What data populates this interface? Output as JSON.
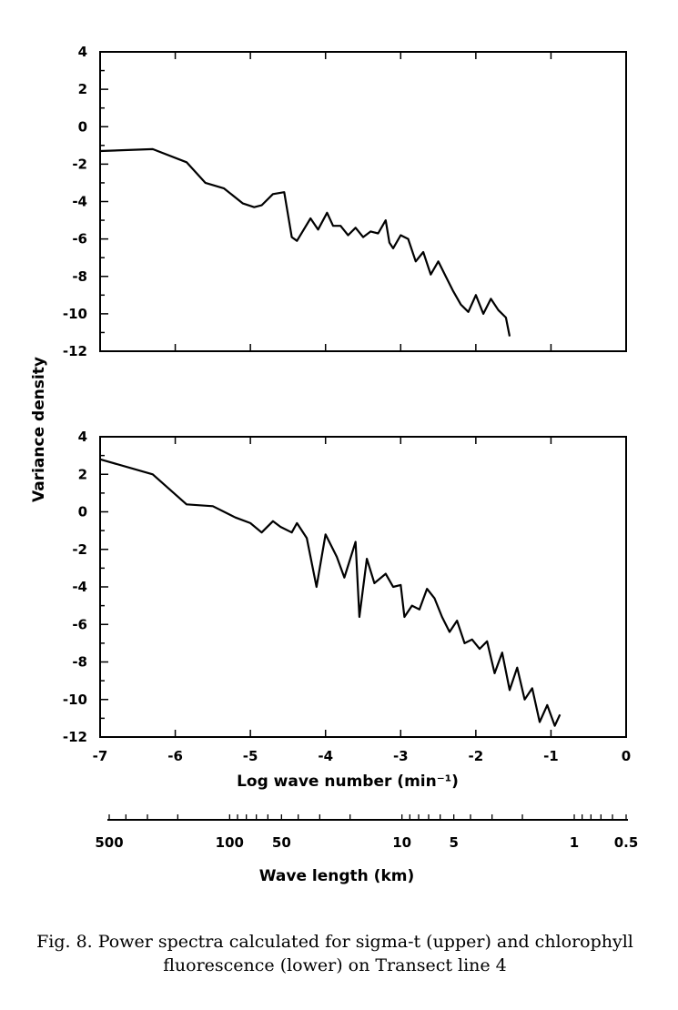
{
  "chart_data": [
    {
      "type": "line",
      "name": "sigma-t (upper)",
      "ylim": [
        -12,
        4
      ],
      "xlim": [
        -7,
        0
      ],
      "yticks": [
        4,
        2,
        0,
        -2,
        -4,
        -6,
        -8,
        -10,
        -12
      ],
      "x": [
        -7.0,
        -6.3,
        -5.85,
        -5.6,
        -5.35,
        -5.1,
        -4.95,
        -4.85,
        -4.7,
        -4.55,
        -4.45,
        -4.38,
        -4.2,
        -4.1,
        -3.98,
        -3.9,
        -3.8,
        -3.7,
        -3.6,
        -3.5,
        -3.4,
        -3.3,
        -3.2,
        -3.15,
        -3.1,
        -3.0,
        -2.9,
        -2.8,
        -2.7,
        -2.6,
        -2.5,
        -2.4,
        -2.3,
        -2.2,
        -2.1,
        -2.0,
        -1.9,
        -1.8,
        -1.7,
        -1.6,
        -1.55
      ],
      "y": [
        -1.3,
        -1.2,
        -1.9,
        -3.0,
        -3.3,
        -4.1,
        -4.3,
        -4.2,
        -3.6,
        -3.5,
        -5.9,
        -6.1,
        -4.9,
        -5.5,
        -4.6,
        -5.3,
        -5.3,
        -5.8,
        -5.4,
        -5.9,
        -5.6,
        -5.7,
        -5.0,
        -6.2,
        -6.5,
        -5.8,
        -6.0,
        -7.2,
        -6.7,
        -7.9,
        -7.2,
        -8.0,
        -8.8,
        -9.5,
        -9.9,
        -9.0,
        -10.0,
        -9.2,
        -9.8,
        -10.2,
        -11.2
      ]
    },
    {
      "type": "line",
      "name": "chlorophyll fluorescence (lower)",
      "ylim": [
        -12,
        4
      ],
      "xlim": [
        -7,
        0
      ],
      "yticks": [
        4,
        2,
        0,
        -2,
        -4,
        -6,
        -8,
        -10,
        -12
      ],
      "xticks": [
        -7,
        -6,
        -5,
        -4,
        -3,
        -2,
        -1,
        0
      ],
      "xlabel": "Log wave number  (min⁻¹)",
      "x": [
        -7.0,
        -6.3,
        -5.85,
        -5.5,
        -5.2,
        -5.0,
        -4.85,
        -4.7,
        -4.6,
        -4.45,
        -4.38,
        -4.25,
        -4.12,
        -4.0,
        -3.85,
        -3.75,
        -3.6,
        -3.55,
        -3.45,
        -3.35,
        -3.2,
        -3.1,
        -3.0,
        -2.95,
        -2.85,
        -2.75,
        -2.65,
        -2.55,
        -2.45,
        -2.35,
        -2.25,
        -2.15,
        -2.05,
        -1.95,
        -1.85,
        -1.75,
        -1.65,
        -1.55,
        -1.45,
        -1.35,
        -1.25,
        -1.15,
        -1.05,
        -0.95,
        -0.88
      ],
      "y": [
        2.8,
        2.0,
        0.4,
        0.3,
        -0.3,
        -0.6,
        -1.1,
        -0.5,
        -0.8,
        -1.1,
        -0.6,
        -1.4,
        -4.0,
        -1.2,
        -2.4,
        -3.5,
        -1.6,
        -5.6,
        -2.5,
        -3.8,
        -3.3,
        -4.0,
        -3.9,
        -5.6,
        -5.0,
        -5.2,
        -4.1,
        -4.6,
        -5.6,
        -6.4,
        -5.8,
        -7.0,
        -6.8,
        -7.3,
        -6.9,
        -8.6,
        -7.5,
        -9.5,
        -8.3,
        -10.0,
        -9.4,
        -11.2,
        -10.3,
        -11.4,
        -10.8
      ]
    }
  ],
  "shared_ylabel": "Variance density",
  "wavelength_axis": {
    "ticks": [
      "500",
      "100",
      "50",
      "10",
      "5",
      "1",
      "0.5"
    ],
    "title": "Wave length   (km)"
  },
  "caption": "Fig. 8. Power spectra calculated for sigma-t (upper) and chlorophyll fluorescence (lower) on Transect line 4"
}
